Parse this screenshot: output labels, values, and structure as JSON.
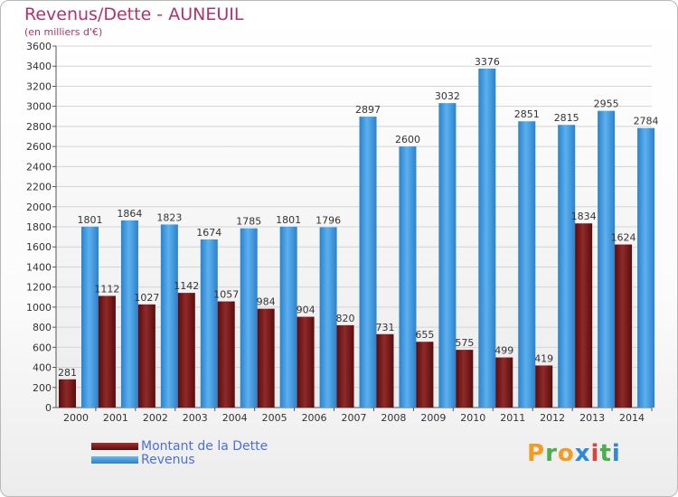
{
  "title": "Revenus/Dette - AUNEUIL",
  "subtitle": "(en milliers d'€)",
  "logo": {
    "letters": [
      "P",
      "r",
      "o",
      "x",
      "i",
      "t",
      "i"
    ],
    "colors": [
      "#f39c1f",
      "#4cae4c",
      "#f39c1f",
      "#2e8ad8",
      "#d9453c",
      "#4cae4c",
      "#2e8ad8"
    ]
  },
  "chart_data": {
    "type": "bar",
    "title": "Revenus/Dette - AUNEUIL",
    "subtitle": "(en milliers d'€)",
    "categories": [
      "2000",
      "2001",
      "2002",
      "2003",
      "2004",
      "2005",
      "2006",
      "2007",
      "2008",
      "2009",
      "2010",
      "2011",
      "2012",
      "2013",
      "2014"
    ],
    "series": [
      {
        "name": "Montant de la Dette",
        "color": "#7a1616",
        "values": [
          281,
          1112,
          1027,
          1142,
          1057,
          984,
          904,
          820,
          731,
          655,
          575,
          499,
          419,
          1834,
          1624
        ],
        "labels": [
          "281",
          "1112",
          "1027",
          "1142",
          "1057",
          "984",
          "904",
          "820",
          "731",
          "655",
          "575",
          "499",
          "419",
          "1834",
          "1624"
        ]
      },
      {
        "name": "Revenus",
        "color": "#3a9ae0",
        "values": [
          1801,
          1864,
          1823,
          1674,
          1785,
          1801,
          1796,
          2897,
          2600,
          3032,
          3376,
          2851,
          2815,
          2955,
          2784
        ],
        "labels": [
          "1801",
          "1864",
          "1823",
          "1674",
          "1785",
          "1801",
          "1796",
          "2897",
          "2600",
          "3032",
          "3376",
          "2851",
          "2815",
          "2955",
          "2784"
        ]
      }
    ],
    "yticks": [
      0,
      200,
      400,
      600,
      800,
      1000,
      1200,
      1400,
      1600,
      1800,
      2000,
      2200,
      2400,
      2600,
      2800,
      3000,
      3200,
      3400,
      3600
    ],
    "ylim": [
      0,
      3600
    ],
    "grid": true,
    "legend": "bottom-left"
  }
}
